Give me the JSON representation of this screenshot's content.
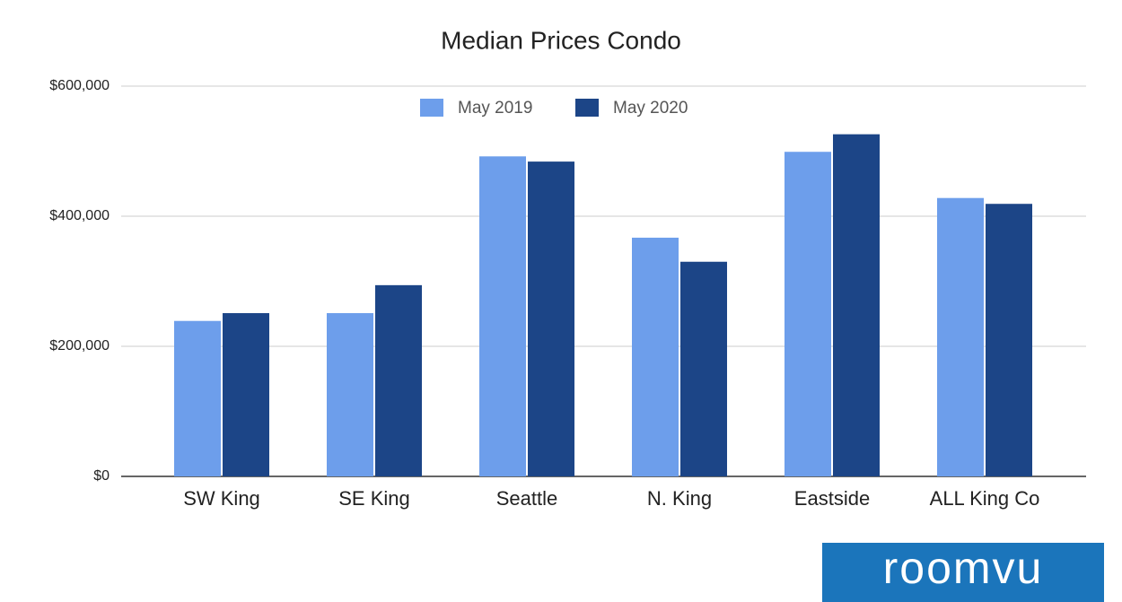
{
  "chart_data": {
    "type": "bar",
    "title": "Median Prices Condo",
    "categories": [
      "SW King",
      "SE King",
      "Seattle",
      "N. King",
      "Eastside",
      "ALL King Co"
    ],
    "series": [
      {
        "name": "May 2019",
        "color": "#6d9eeb",
        "values": [
          239000,
          251000,
          492000,
          367000,
          499000,
          428000
        ]
      },
      {
        "name": "May 2020",
        "color": "#1c4587",
        "values": [
          251000,
          294000,
          484000,
          330000,
          526000,
          419000
        ]
      }
    ],
    "ylim": [
      0,
      600000
    ],
    "yticks": [
      {
        "value": 0,
        "label": "$0"
      },
      {
        "value": 200000,
        "label": "$200,000"
      },
      {
        "value": 400000,
        "label": "$400,000"
      },
      {
        "value": 600000,
        "label": "$600,000"
      }
    ],
    "grid": true,
    "legend": "top"
  },
  "logo": "roomvu"
}
